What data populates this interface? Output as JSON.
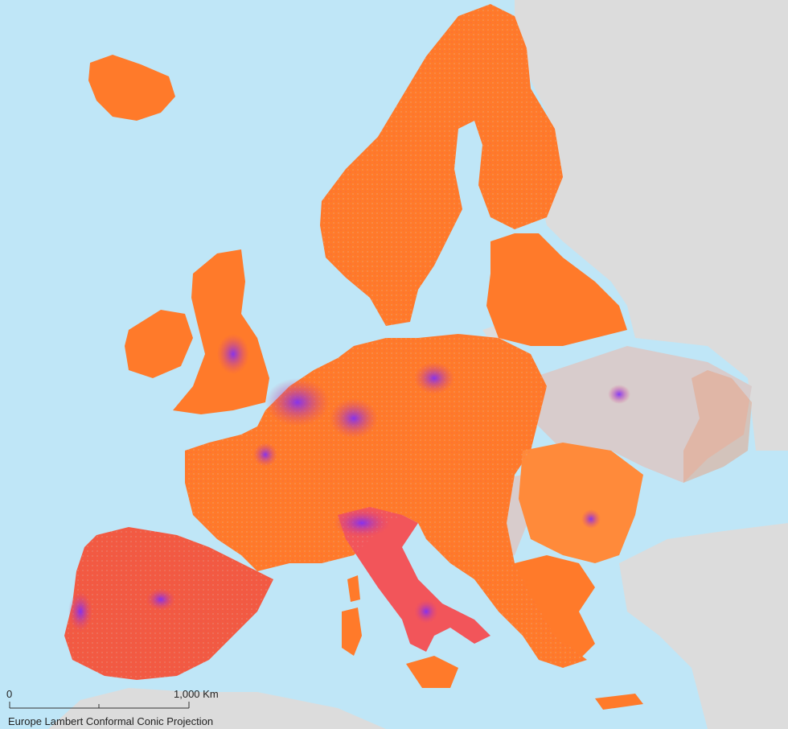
{
  "scale_bar": {
    "start_label": "0",
    "end_label": "1,000 Km"
  },
  "projection": "Europe Lambert Conformal Conic Projection",
  "colors": {
    "water": "#bfe6f7",
    "other_land": "#dcdcdc",
    "low_density": "#ff7a2a",
    "mid_density": "#f0405a",
    "high_density": "#7a2cff",
    "sparse": "#d8c8c8"
  }
}
